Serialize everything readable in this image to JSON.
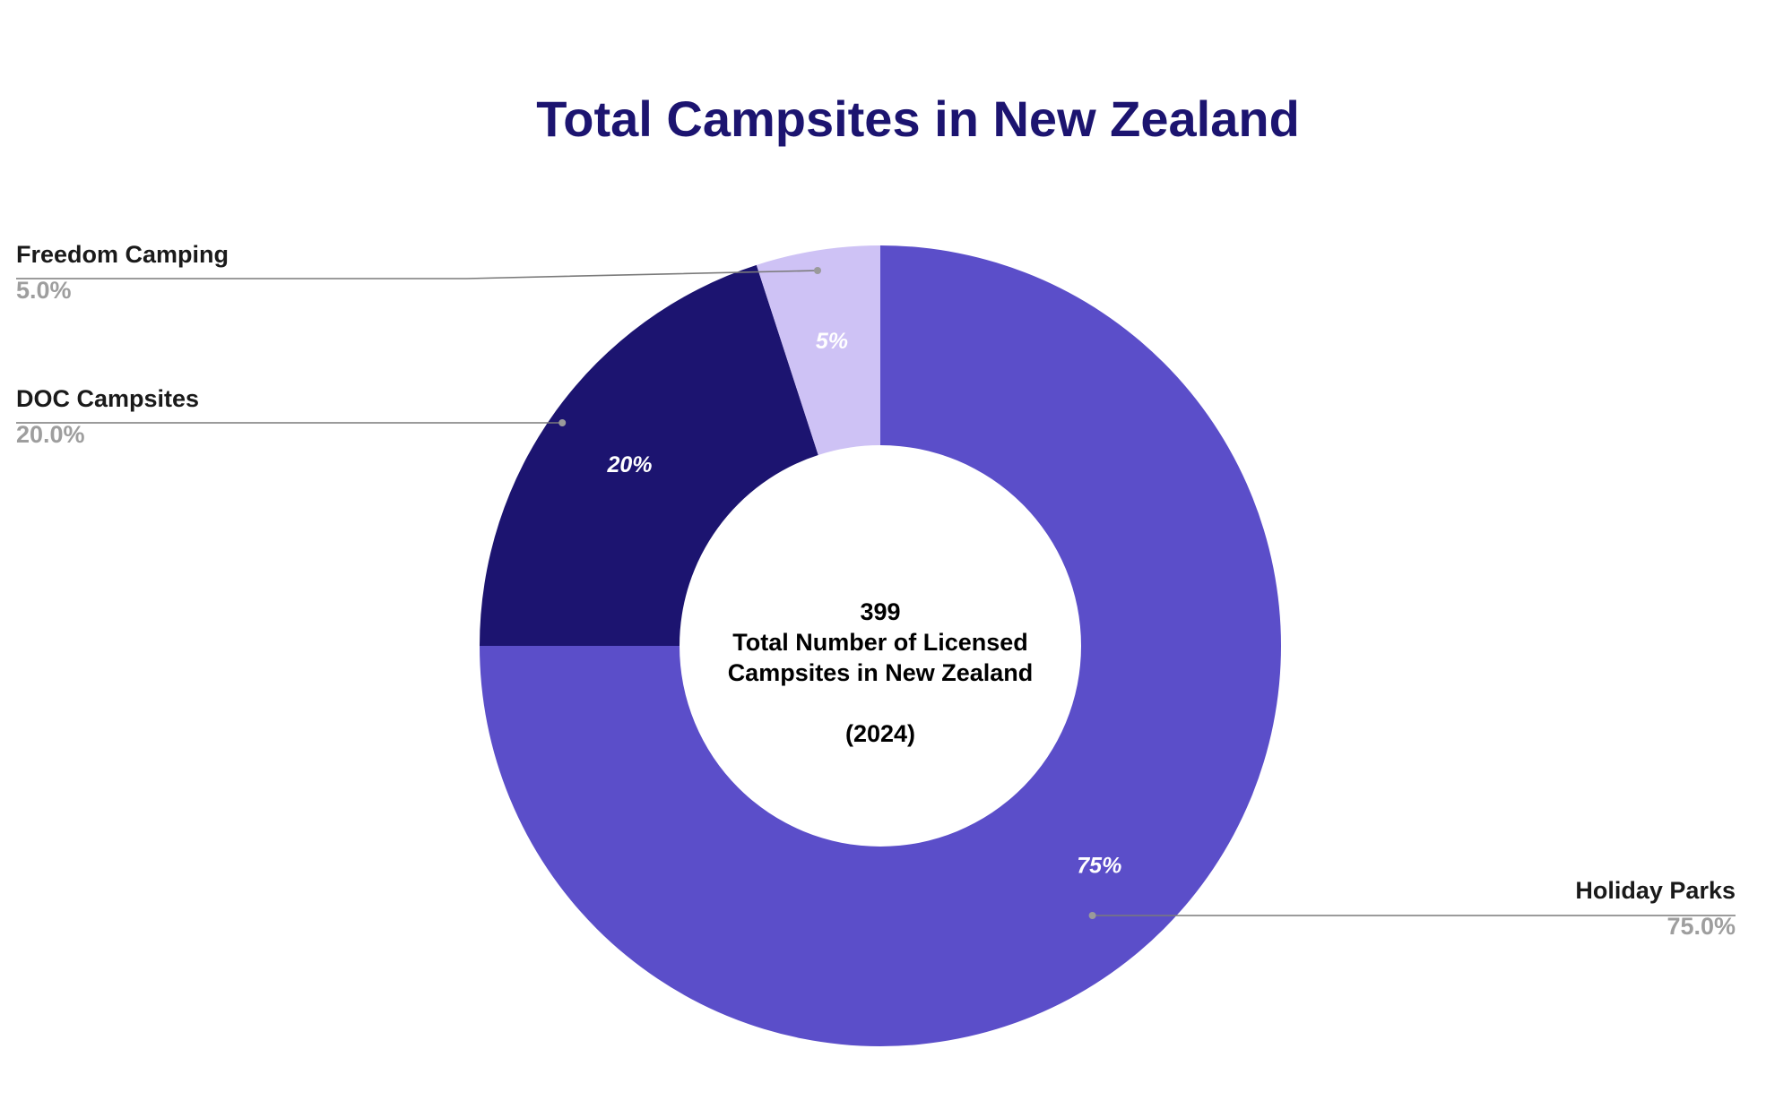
{
  "chart_data": {
    "type": "pie",
    "variant": "donut",
    "title": "Total Campsites in New Zealand",
    "center_text": [
      "399",
      "Total Number of Licensed",
      "Campsites in New Zealand",
      "",
      "(2024)"
    ],
    "slices": [
      {
        "name": "Holiday Parks",
        "value": 75.0,
        "slice_label": "75%",
        "callout_pct": "75.0%",
        "color": "#5b4ec9"
      },
      {
        "name": "DOC Campsites",
        "value": 20.0,
        "slice_label": "20%",
        "callout_pct": "20.0%",
        "color": "#1c1470"
      },
      {
        "name": "Freedom Camping",
        "value": 5.0,
        "slice_label": "5%",
        "callout_pct": "5.0%",
        "color": "#cec2f5"
      }
    ],
    "legend": "none",
    "data_labels": "inside-slices and callouts"
  }
}
